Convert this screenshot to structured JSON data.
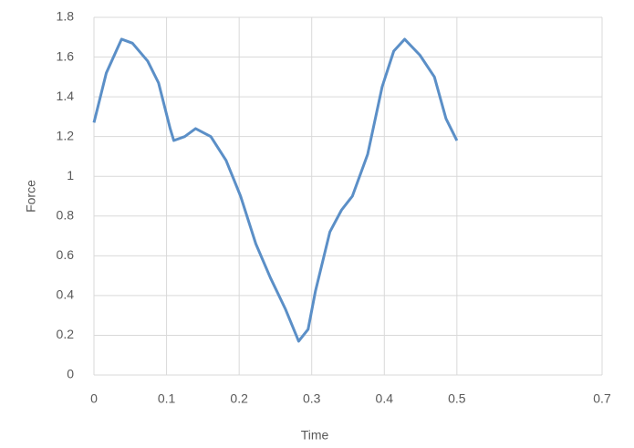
{
  "chart_data": {
    "type": "line",
    "x_label": "Time",
    "y_label": "Force",
    "x": [
      0,
      0.017,
      0.038,
      0.053,
      0.074,
      0.089,
      0.105,
      0.11,
      0.125,
      0.14,
      0.161,
      0.182,
      0.202,
      0.223,
      0.243,
      0.264,
      0.282,
      0.295,
      0.305,
      0.325,
      0.341,
      0.356,
      0.377,
      0.397,
      0.413,
      0.428,
      0.449,
      0.469,
      0.485,
      0.5
    ],
    "series": [
      {
        "color": "#5b8fc7",
        "values": [
          1.27,
          1.52,
          1.69,
          1.67,
          1.58,
          1.47,
          1.24,
          1.18,
          1.2,
          1.24,
          1.2,
          1.08,
          0.9,
          0.66,
          0.49,
          0.33,
          0.17,
          0.23,
          0.42,
          0.72,
          0.83,
          0.9,
          1.11,
          1.45,
          1.63,
          1.69,
          1.61,
          1.5,
          1.29,
          1.18
        ]
      }
    ],
    "xlim": [
      0,
      0.7
    ],
    "xticks": [
      0,
      0.1,
      0.2,
      0.3,
      0.4,
      0.5,
      0.7
    ],
    "ylim": [
      0,
      1.8
    ],
    "yticks": [
      0,
      0.2,
      0.4,
      0.6,
      0.8,
      1,
      1.2,
      1.4,
      1.6,
      1.8
    ],
    "grid": true
  }
}
